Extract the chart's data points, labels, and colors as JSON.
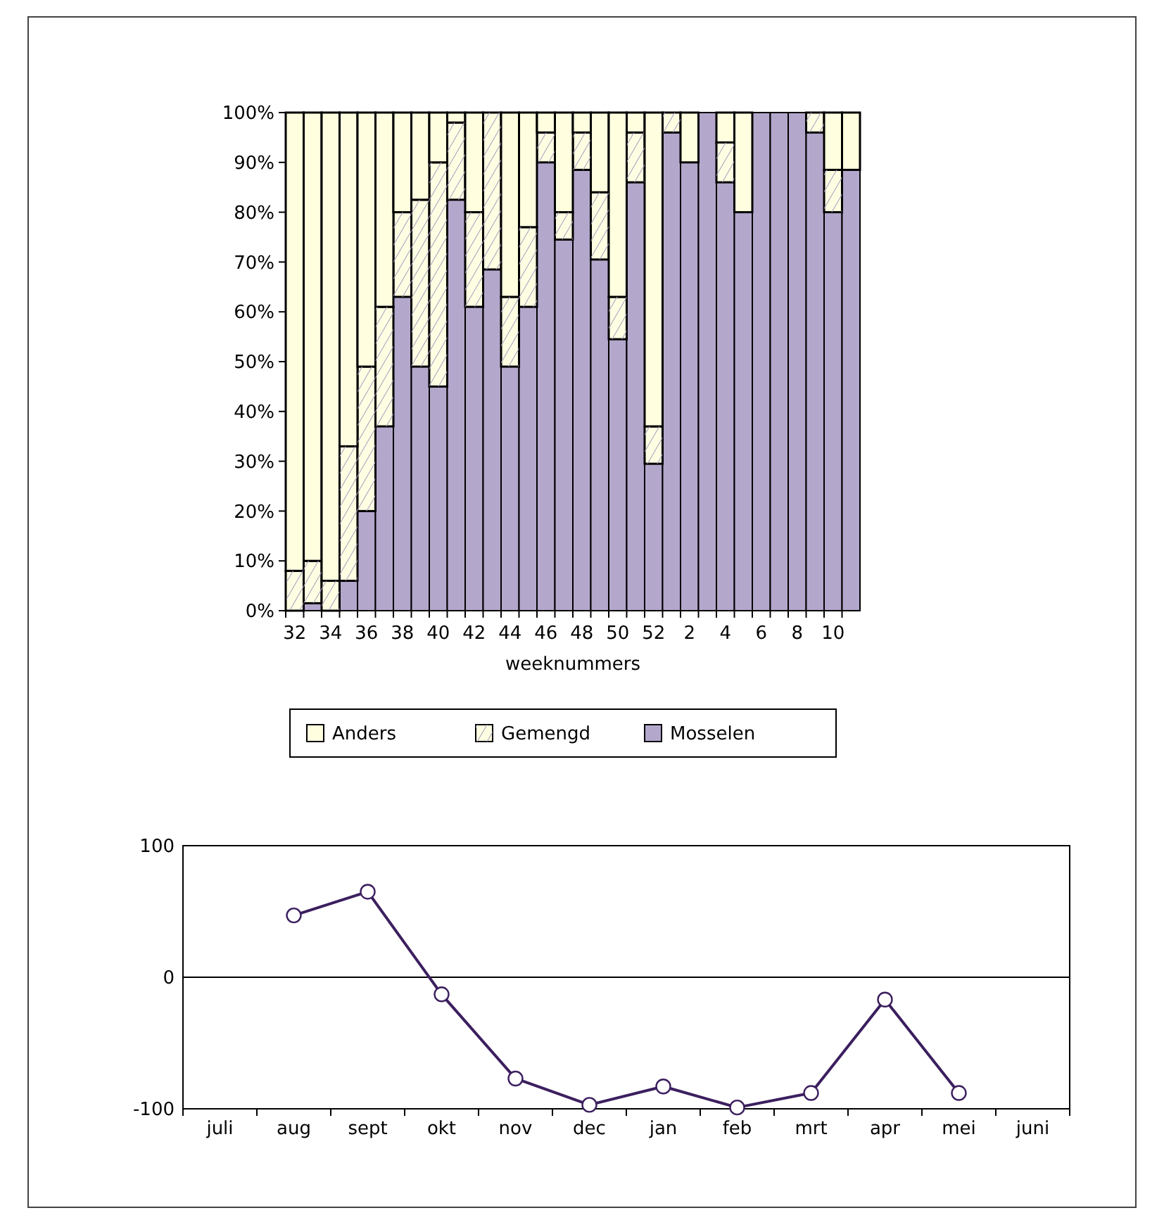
{
  "chart_data": [
    {
      "type": "bar",
      "stacked": true,
      "xlabel": "weeknummers",
      "categories": [
        "32",
        null,
        "34",
        null,
        "36",
        null,
        "38",
        null,
        "40",
        null,
        "42",
        null,
        "44",
        null,
        "46",
        null,
        "48",
        null,
        "50",
        null,
        "52",
        null,
        "2",
        null,
        "4",
        null,
        "6",
        null,
        "8",
        null,
        "10",
        null
      ],
      "ylim": [
        0,
        100
      ],
      "yticks": [
        {
          "value": 0,
          "label": "0%"
        },
        {
          "value": 10,
          "label": "10%"
        },
        {
          "value": 20,
          "label": "20%"
        },
        {
          "value": 30,
          "label": "30%"
        },
        {
          "value": 40,
          "label": "40%"
        },
        {
          "value": 50,
          "label": "50%"
        },
        {
          "value": 60,
          "label": "60%"
        },
        {
          "value": 70,
          "label": "70%"
        },
        {
          "value": 80,
          "label": "80%"
        },
        {
          "value": 90,
          "label": "90%"
        },
        {
          "value": 100,
          "label": "100%"
        }
      ],
      "legend": "bottom",
      "grid": false,
      "series": [
        {
          "name": "Mosselen",
          "color": "#b4a7cc",
          "values": [
            0,
            1.5,
            0,
            6,
            20,
            37,
            63,
            49,
            45,
            82.5,
            61,
            68.5,
            49,
            61,
            90,
            74.5,
            88.5,
            70.5,
            54.5,
            86,
            29.5,
            96,
            90,
            100,
            86,
            80,
            100,
            100,
            100,
            96,
            80,
            88.5
          ]
        },
        {
          "name": "Gemengd",
          "color": "#fefee2",
          "values": [
            8,
            8.5,
            6,
            27,
            29,
            24,
            17,
            33.5,
            45,
            15.5,
            19,
            31.5,
            14,
            16,
            6,
            5.5,
            7.5,
            13.5,
            8.5,
            10,
            7.5,
            4,
            0,
            0,
            8,
            0,
            0,
            0,
            0,
            4,
            8.5,
            0
          ]
        },
        {
          "name": "Anders",
          "color": "#ffffe0",
          "values": [
            92,
            90,
            94,
            67,
            51,
            39,
            20,
            17.5,
            10,
            2,
            20,
            0,
            37,
            23,
            4,
            20,
            4,
            16,
            37,
            4,
            63,
            0,
            10,
            0,
            6,
            20,
            0,
            0,
            0,
            0,
            11.5,
            11.5
          ]
        }
      ]
    },
    {
      "type": "line",
      "categories": [
        "juli",
        "aug",
        "sept",
        "okt",
        "nov",
        "dec",
        "jan",
        "feb",
        "mrt",
        "apr",
        "mei",
        "juni"
      ],
      "ylim": [
        -100,
        100
      ],
      "yticks": [
        -100,
        0,
        100
      ],
      "marker": "circle",
      "line_style": "solid",
      "grid": false,
      "ref_lines": [
        {
          "axis": "y",
          "value": 0
        }
      ],
      "series": [
        {
          "color": "#3c1f5f",
          "values": [
            null,
            47,
            65,
            -13,
            -77,
            -97,
            -83,
            -99,
            -88,
            -17,
            -88,
            null
          ]
        }
      ]
    }
  ]
}
